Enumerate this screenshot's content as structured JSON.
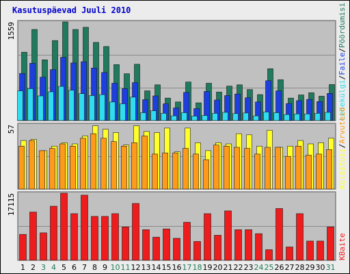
{
  "title": "Kasutuspäevad Juuli 2010",
  "colors": {
    "title": "#0000cc",
    "plot_bg": "#c0c0c0",
    "page_bg": "#ececec",
    "grid": "#8a8a8a",
    "weekday_tick": "#000000",
    "weekend_tick": "#1e7a55",
    "pooordumisi": "#1f7a5e",
    "faile": "#1d3fe0",
    "lehekulgi": "#30dcf0",
    "kulastusi": "#ffff2a",
    "arvuteid": "#ff9a1a",
    "kbaite": "#ee1c1c"
  },
  "chart_data": [
    {
      "type": "bar",
      "panel": "top",
      "ylim": [
        0,
        1559
      ],
      "tick_label": "1559",
      "side_labels": [
        "Pöördumisi",
        "/",
        "Faile",
        "/",
        "Lehekülgi"
      ],
      "categories": [
        "1",
        "2",
        "3",
        "4",
        "5",
        "6",
        "7",
        "8",
        "9",
        "10",
        "11",
        "12",
        "13",
        "14",
        "15",
        "16",
        "17",
        "18",
        "19",
        "20",
        "21",
        "22",
        "23",
        "24",
        "25",
        "26",
        "27",
        "28",
        "29",
        "30",
        "31"
      ],
      "series": [
        {
          "name": "Pöördumisi",
          "color_key": "pooordumisi",
          "values": [
            1080,
            1440,
            960,
            1265,
            1559,
            1440,
            1475,
            1235,
            1170,
            885,
            740,
            890,
            470,
            565,
            355,
            295,
            610,
            280,
            590,
            450,
            545,
            565,
            490,
            410,
            820,
            645,
            355,
            405,
            440,
            385,
            570
          ]
        },
        {
          "name": "Faile",
          "color_key": "faile",
          "values": [
            745,
            905,
            685,
            805,
            1000,
            910,
            930,
            830,
            760,
            590,
            505,
            600,
            330,
            390,
            265,
            200,
            445,
            190,
            460,
            325,
            395,
            420,
            360,
            295,
            630,
            470,
            270,
            315,
            335,
            300,
            430
          ]
        },
        {
          "name": "Lehekülgi",
          "color_key": "lehekulgi",
          "values": [
            470,
            505,
            390,
            455,
            540,
            480,
            425,
            395,
            410,
            295,
            265,
            370,
            125,
            155,
            115,
            75,
            125,
            70,
            80,
            115,
            130,
            110,
            120,
            75,
            135,
            125,
            95,
            105,
            105,
            115,
            130
          ]
        }
      ]
    },
    {
      "type": "bar",
      "panel": "middle",
      "ylim": [
        0,
        57
      ],
      "tick_label": "57",
      "side_labels": [
        "Arvuteid",
        "/",
        "Külastusi"
      ],
      "categories": [
        "1",
        "2",
        "3",
        "4",
        "5",
        "6",
        "7",
        "8",
        "9",
        "10",
        "11",
        "12",
        "13",
        "14",
        "15",
        "16",
        "17",
        "18",
        "19",
        "20",
        "21",
        "22",
        "23",
        "24",
        "25",
        "26",
        "27",
        "28",
        "29",
        "30",
        "31"
      ],
      "series": [
        {
          "name": "Külastusi",
          "color_key": "kulastusi",
          "values": [
            43,
            44,
            34,
            38,
            41,
            40,
            47,
            56,
            53,
            50,
            39,
            56,
            51,
            50,
            54,
            33,
            54,
            41,
            34,
            41,
            40,
            49,
            48,
            38,
            52,
            37,
            38,
            43,
            40,
            41,
            45
          ]
        },
        {
          "name": "Arvuteid",
          "color_key": "arvuteid",
          "values": [
            38,
            43,
            34,
            36,
            40,
            38,
            45,
            49,
            45,
            42,
            38,
            41,
            47,
            31,
            32,
            32,
            36,
            31,
            26,
            39,
            38,
            37,
            36,
            31,
            37,
            37,
            29,
            38,
            30,
            31,
            35
          ]
        }
      ]
    },
    {
      "type": "bar",
      "panel": "bottom",
      "ylim": [
        0,
        17115
      ],
      "tick_label": "17115",
      "side_labels": [
        "KBaite"
      ],
      "categories": [
        "1",
        "2",
        "3",
        "4",
        "5",
        "6",
        "7",
        "8",
        "9",
        "10",
        "11",
        "12",
        "13",
        "14",
        "15",
        "16",
        "17",
        "18",
        "19",
        "20",
        "21",
        "22",
        "23",
        "24",
        "25",
        "26",
        "27",
        "28",
        "29",
        "30",
        "31"
      ],
      "weekend_days": [
        "3",
        "4",
        "10",
        "11",
        "17",
        "18",
        "24",
        "25",
        "31"
      ],
      "series": [
        {
          "name": "KBaite",
          "color_key": "kbaite",
          "values": [
            6600,
            12300,
            7000,
            13800,
            17115,
            11900,
            16600,
            11200,
            11200,
            11900,
            8500,
            14500,
            7800,
            5900,
            8000,
            5600,
            9700,
            4800,
            11900,
            6400,
            12600,
            7800,
            7800,
            6800,
            2700,
            13200,
            3400,
            11900,
            4900,
            4900,
            8500
          ]
        }
      ]
    }
  ]
}
